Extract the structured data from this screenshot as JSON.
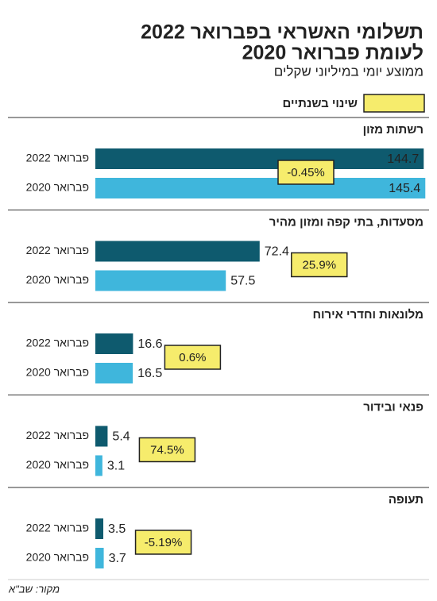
{
  "chart_data": {
    "type": "bar",
    "title": [
      "תשלומי האשראי בפברואר 2022",
      "לעומת פברואר 2020"
    ],
    "subtitle": "ממוצע יומי במיליוני שקלים",
    "categories": [
      "רשתות מזון",
      "מסעדות, בתי קפה ומזון מהיר",
      "מלונאות וחדרי אירוח",
      "פנאי ובידור",
      "תעופה"
    ],
    "series": [
      {
        "name": "פברואר 2022",
        "color": "#0e5a6e",
        "values": [
          144.7,
          72.4,
          16.6,
          5.4,
          3.5
        ]
      },
      {
        "name": "פברואר 2020",
        "color": "#3fb6dc",
        "values": [
          145.4,
          57.5,
          16.5,
          3.1,
          3.7
        ]
      }
    ],
    "change": {
      "name": "שינוי בשנתיים",
      "color": "#f6ec6c",
      "values": [
        -0.45,
        25.9,
        0.6,
        74.5,
        -5.19
      ],
      "value_labels": [
        "-0.45%",
        "25.9%",
        "0.6%",
        "74.5%",
        "-5.19%"
      ]
    },
    "xlim": [
      0,
      146
    ],
    "source": "מקור: שב\"א"
  }
}
